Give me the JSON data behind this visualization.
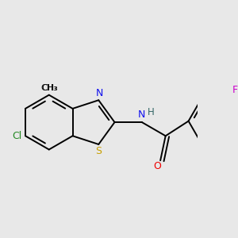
{
  "bg": "#e8e8e8",
  "bc": "#000000",
  "bw": 1.4,
  "fs": 8.5,
  "colors": {
    "N": "#1010ee",
    "S": "#c8a000",
    "O": "#ee0000",
    "Cl": "#228822",
    "F": "#cc00cc",
    "H": "#336666"
  },
  "figsize": [
    3.0,
    3.0
  ],
  "dpi": 100
}
